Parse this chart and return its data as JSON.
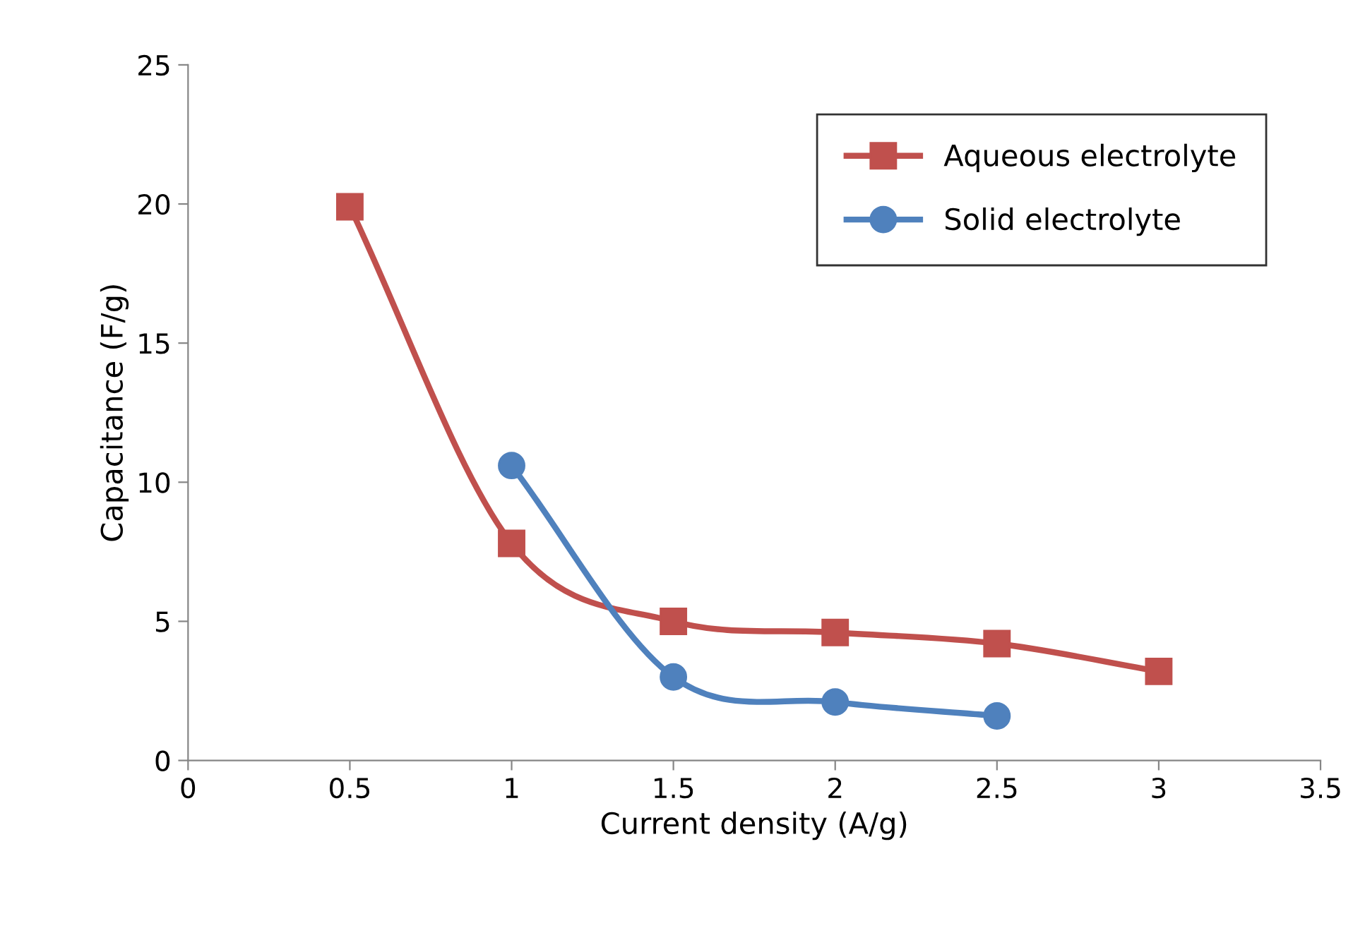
{
  "chart_data": {
    "type": "line",
    "xlabel": "Current density (A/g)",
    "ylabel": "Capacitance (F/g)",
    "xlim": [
      0,
      3.5
    ],
    "xticks": [
      0,
      0.5,
      1,
      1.5,
      2,
      2.5,
      3,
      3.5
    ],
    "ylim": [
      0,
      25
    ],
    "yticks": [
      0,
      5,
      10,
      15,
      20,
      25
    ],
    "grid": false,
    "legend": "top right",
    "series": [
      {
        "name": "Aqueous electrolyte",
        "color": "#c0504d",
        "marker": "square",
        "x": [
          0.5,
          1,
          1.5,
          2,
          2.5,
          3
        ],
        "values": [
          19.9,
          7.8,
          5.0,
          4.6,
          4.2,
          3.2
        ]
      },
      {
        "name": "Solid electrolyte",
        "color": "#4f81bd",
        "marker": "circle",
        "x": [
          1,
          1.5,
          2,
          2.5
        ],
        "values": [
          10.6,
          3.0,
          2.1,
          1.6
        ]
      }
    ]
  }
}
